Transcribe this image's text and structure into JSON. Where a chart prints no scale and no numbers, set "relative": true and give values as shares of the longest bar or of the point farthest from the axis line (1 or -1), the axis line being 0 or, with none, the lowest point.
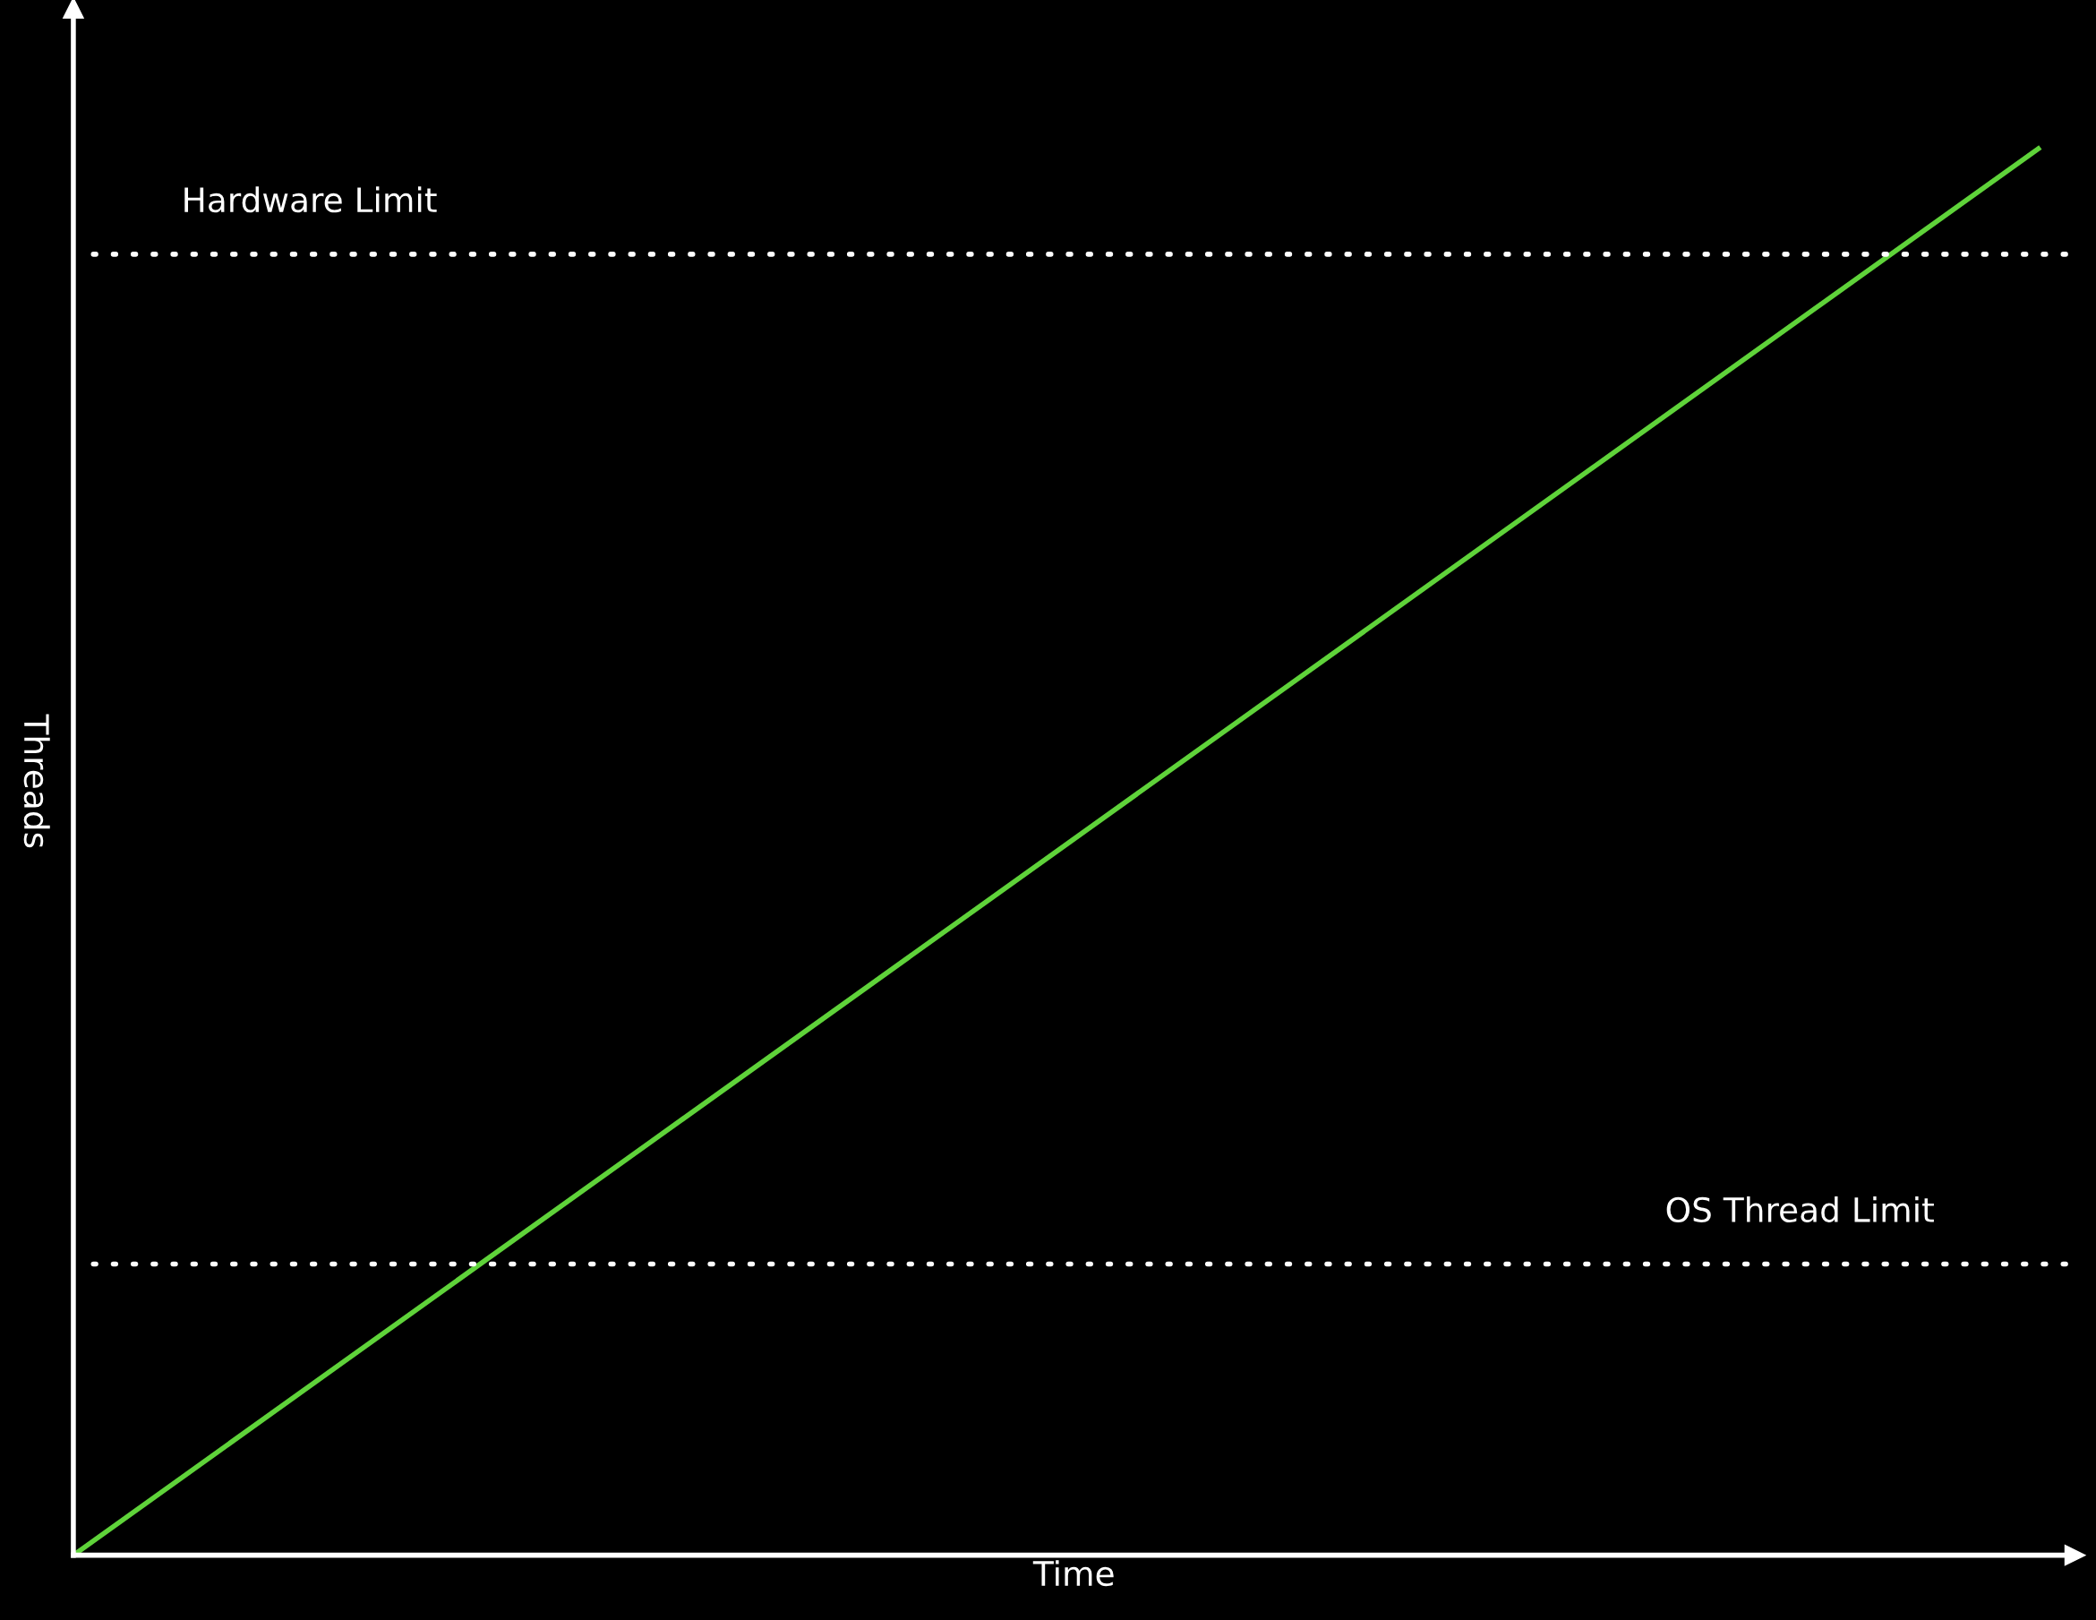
{
  "chart_data": {
    "type": "line",
    "relative": true,
    "xlabel": "Time",
    "ylabel": "Threads",
    "categories": [
      null,
      null
    ],
    "series": [
      {
        "color": "#5fd33a",
        "values": [
          0,
          1
        ]
      }
    ],
    "ref_lines": [
      {
        "axis": "y",
        "value": 0.925,
        "label": "Hardware Limit",
        "color": "#ffffff",
        "line_style": "dotted"
      },
      {
        "axis": "y",
        "value": 0.207,
        "label": "OS Thread Limit",
        "color": "#ffffff",
        "line_style": "dotted"
      }
    ],
    "legend": false,
    "marker": "none",
    "line_style": "solid"
  }
}
